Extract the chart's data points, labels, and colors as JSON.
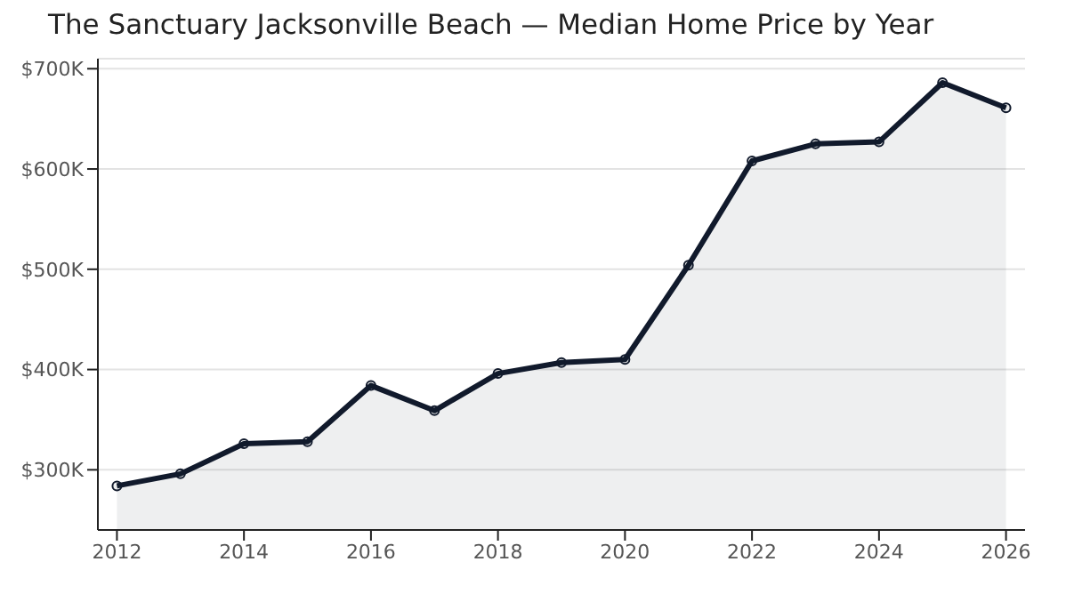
{
  "chart_data": {
    "type": "area",
    "title": "The Sanctuary Jacksonville Beach — Median Home Price by Year",
    "x": [
      2012,
      2013,
      2014,
      2015,
      2016,
      2017,
      2018,
      2019,
      2020,
      2021,
      2022,
      2023,
      2024,
      2025,
      2026
    ],
    "series": [
      {
        "color": "#111a2c",
        "values": [
          284000,
          296000,
          326000,
          328000,
          384000,
          359000,
          396000,
          407000,
          410000,
          504000,
          608000,
          625000,
          627000,
          686000,
          661000
        ]
      }
    ],
    "xlim": [
      2011.7,
      2026.3
    ],
    "xticks": [
      2012,
      2014,
      2016,
      2018,
      2020,
      2022,
      2024,
      2026
    ],
    "ylim": [
      240000,
      710000
    ],
    "yticks": [
      {
        "value": 300000,
        "label": "$300K"
      },
      {
        "value": 400000,
        "label": "$400K"
      },
      {
        "value": 500000,
        "label": "$500K"
      },
      {
        "value": 600000,
        "label": "$600K"
      },
      {
        "value": 700000,
        "label": "$700K"
      }
    ],
    "grid": "y",
    "marker": "circle",
    "line_style": "solid",
    "legend": false
  }
}
